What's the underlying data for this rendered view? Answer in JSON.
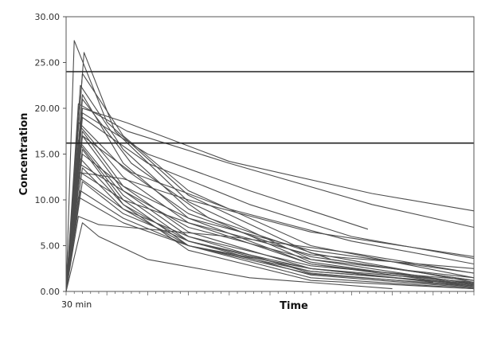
{
  "chart_data": {
    "type": "line",
    "xlabel": "Time",
    "ylabel": "Concentration",
    "ylim": [
      0,
      30
    ],
    "xlim": [
      0,
      100
    ],
    "y_ticks": [
      "0.00",
      "5.00",
      "10.00",
      "15.00",
      "20.00",
      "25.00",
      "30.00"
    ],
    "x_ticks": [
      {
        "label": "30 min",
        "value": 0
      }
    ],
    "grid": false,
    "legend": "none",
    "line_color": "#4d4d4d",
    "reference_lines": [
      {
        "y": 24.0,
        "color": "#222222"
      },
      {
        "y": 16.2,
        "color": "#222222"
      }
    ],
    "series": [
      {
        "values": [
          [
            0,
            0
          ],
          [
            2,
            27.4
          ],
          [
            10,
            18.5
          ],
          [
            30,
            10.5
          ],
          [
            60,
            4.2
          ],
          [
            100,
            1.0
          ]
        ]
      },
      {
        "values": [
          [
            0,
            0
          ],
          [
            4.4,
            26.1
          ],
          [
            12,
            17.5
          ],
          [
            30,
            9.8
          ],
          [
            60,
            3.5
          ],
          [
            100,
            0.8
          ]
        ]
      },
      {
        "values": [
          [
            0,
            0
          ],
          [
            4,
            23.8
          ],
          [
            14,
            17.0
          ],
          [
            30,
            11.0
          ],
          [
            60,
            5.0
          ],
          [
            100,
            1.5
          ]
        ]
      },
      {
        "values": [
          [
            0,
            0
          ],
          [
            3.5,
            22.5
          ],
          [
            14,
            15.5
          ],
          [
            30,
            9.0
          ],
          [
            60,
            3.2
          ],
          [
            100,
            0.7
          ]
        ]
      },
      {
        "values": [
          [
            0,
            0
          ],
          [
            4,
            21.5
          ],
          [
            14,
            14.0
          ],
          [
            30,
            8.0
          ],
          [
            60,
            3.0
          ],
          [
            100,
            0.6
          ]
        ]
      },
      {
        "values": [
          [
            0,
            0
          ],
          [
            3,
            20.5
          ],
          [
            15,
            17.5
          ],
          [
            40,
            14.0
          ],
          [
            75,
            9.5
          ],
          [
            100,
            7.0
          ]
        ]
      },
      {
        "values": [
          [
            0,
            0
          ],
          [
            4,
            20.0
          ],
          [
            15,
            18.4
          ],
          [
            40,
            14.2
          ],
          [
            75,
            10.7
          ],
          [
            100,
            8.8
          ]
        ]
      },
      {
        "values": [
          [
            0,
            0
          ],
          [
            4,
            19.5
          ],
          [
            20,
            15.0
          ],
          [
            45,
            11.0
          ],
          [
            74,
            6.8
          ]
        ]
      },
      {
        "values": [
          [
            0,
            0
          ],
          [
            4,
            19.0
          ],
          [
            20,
            14.0
          ],
          [
            45,
            9.5
          ],
          [
            70,
            6.0
          ],
          [
            100,
            3.6
          ]
        ]
      },
      {
        "values": [
          [
            0,
            0
          ],
          [
            3,
            18.5
          ],
          [
            14,
            13.5
          ],
          [
            30,
            8.5
          ],
          [
            60,
            3.8
          ],
          [
            100,
            1.2
          ]
        ]
      },
      {
        "values": [
          [
            0,
            0
          ],
          [
            3.5,
            18.0
          ],
          [
            14,
            12.5
          ],
          [
            30,
            7.5
          ],
          [
            60,
            3.0
          ],
          [
            100,
            0.9
          ]
        ]
      },
      {
        "values": [
          [
            0,
            0
          ],
          [
            4,
            17.5
          ],
          [
            14,
            11.5
          ],
          [
            30,
            6.5
          ],
          [
            60,
            2.5
          ],
          [
            100,
            0.6
          ]
        ]
      },
      {
        "values": [
          [
            0,
            0
          ],
          [
            4,
            17.0
          ],
          [
            14,
            11.0
          ],
          [
            30,
            6.0
          ],
          [
            60,
            2.0
          ],
          [
            100,
            0.5
          ]
        ]
      },
      {
        "values": [
          [
            0,
            0
          ],
          [
            3,
            16.5
          ],
          [
            14,
            10.5
          ],
          [
            30,
            5.5
          ],
          [
            60,
            1.8
          ],
          [
            100,
            0.4
          ]
        ]
      },
      {
        "values": [
          [
            0,
            0
          ],
          [
            3.5,
            16.0
          ],
          [
            14,
            10.0
          ],
          [
            30,
            5.0
          ],
          [
            60,
            1.5
          ],
          [
            100,
            0.3
          ]
        ]
      },
      {
        "values": [
          [
            0,
            0
          ],
          [
            4,
            15.5
          ],
          [
            14,
            9.5
          ],
          [
            30,
            4.5
          ],
          [
            60,
            1.2
          ],
          [
            100,
            0.3
          ]
        ]
      },
      {
        "values": [
          [
            0,
            0
          ],
          [
            4,
            15.0
          ],
          [
            14,
            11.5
          ],
          [
            30,
            8.0
          ],
          [
            60,
            4.5
          ],
          [
            100,
            2.0
          ]
        ]
      },
      {
        "values": [
          [
            0,
            0
          ],
          [
            3.5,
            14.5
          ],
          [
            14,
            9.5
          ],
          [
            30,
            5.5
          ],
          [
            60,
            2.2
          ],
          [
            100,
            0.8
          ]
        ]
      },
      {
        "values": [
          [
            0,
            0
          ],
          [
            3,
            14.0
          ],
          [
            14,
            11.0
          ],
          [
            30,
            7.0
          ],
          [
            60,
            3.5
          ],
          [
            100,
            1.5
          ]
        ]
      },
      {
        "values": [
          [
            0,
            0
          ],
          [
            4,
            13.5
          ],
          [
            14,
            9.0
          ],
          [
            30,
            5.0
          ],
          [
            60,
            1.9
          ],
          [
            100,
            0.6
          ]
        ]
      },
      {
        "values": [
          [
            0,
            0
          ],
          [
            3.5,
            13.0
          ],
          [
            14,
            10.0
          ],
          [
            30,
            7.5
          ],
          [
            60,
            4.0
          ],
          [
            100,
            2.5
          ]
        ]
      },
      {
        "values": [
          [
            0,
            0
          ],
          [
            3,
            12.5
          ],
          [
            14,
            9.0
          ],
          [
            30,
            6.0
          ],
          [
            60,
            2.8
          ],
          [
            100,
            1.2
          ]
        ]
      },
      {
        "values": [
          [
            0,
            0
          ],
          [
            4,
            12.0
          ],
          [
            14,
            8.5
          ],
          [
            30,
            5.5
          ],
          [
            60,
            2.5
          ],
          [
            100,
            1.0
          ]
        ]
      },
      {
        "values": [
          [
            0,
            0
          ],
          [
            3.5,
            11.0
          ],
          [
            14,
            8.0
          ],
          [
            30,
            5.0
          ],
          [
            60,
            2.2
          ],
          [
            98,
            0.9
          ]
        ]
      },
      {
        "values": [
          [
            0,
            0
          ],
          [
            3,
            10.3
          ],
          [
            14,
            7.5
          ],
          [
            30,
            5.0
          ],
          [
            60,
            2.5
          ],
          [
            90,
            1.0
          ]
        ]
      },
      {
        "values": [
          [
            0,
            0
          ],
          [
            3,
            8.2
          ],
          [
            8,
            7.3
          ],
          [
            40,
            6.0
          ],
          [
            70,
            4.2
          ],
          [
            100,
            2.0
          ]
        ]
      },
      {
        "values": [
          [
            0,
            0
          ],
          [
            4,
            7.5
          ],
          [
            8,
            6.0
          ],
          [
            20,
            3.5
          ],
          [
            45,
            1.5
          ],
          [
            80,
            0.3
          ]
        ]
      },
      {
        "values": [
          [
            0,
            0
          ],
          [
            4,
            17.0
          ],
          [
            16,
            13.0
          ],
          [
            40,
            9.0
          ],
          [
            70,
            5.5
          ],
          [
            100,
            3.0
          ]
        ]
      },
      {
        "values": [
          [
            0,
            0
          ],
          [
            4,
            21.0
          ],
          [
            16,
            14.0
          ],
          [
            35,
            8.0
          ],
          [
            65,
            3.5
          ],
          [
            100,
            1.2
          ]
        ]
      },
      {
        "values": [
          [
            0,
            0
          ],
          [
            3,
            13.0
          ],
          [
            14,
            12.3
          ],
          [
            30,
            10.0
          ],
          [
            60,
            6.5
          ],
          [
            100,
            3.8
          ]
        ]
      }
    ]
  }
}
